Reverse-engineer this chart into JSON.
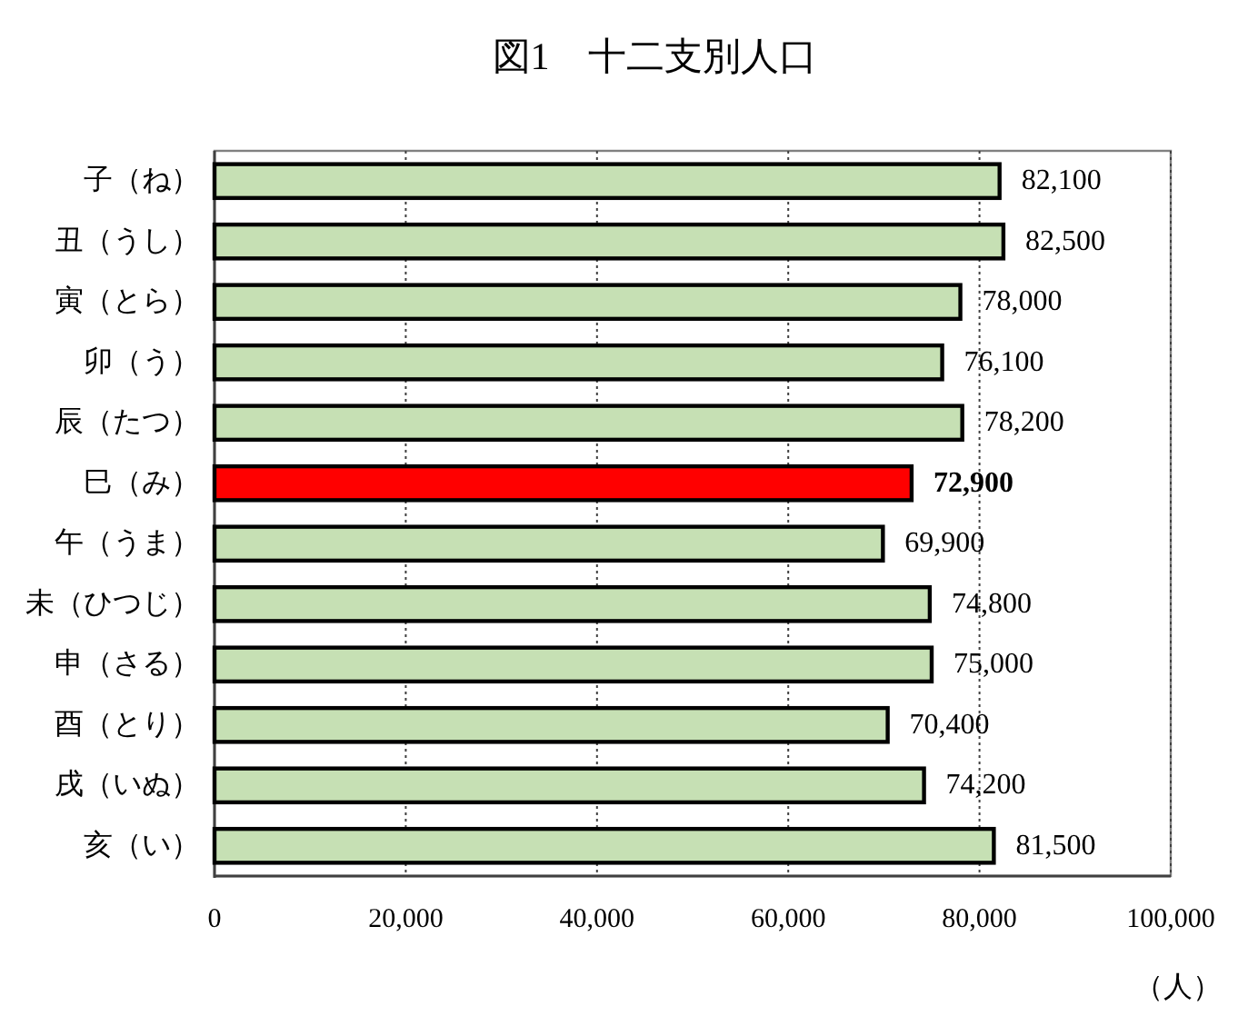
{
  "chart_data": {
    "type": "bar",
    "orientation": "horizontal",
    "title": "図1　十二支別人口",
    "xlabel": "（人）",
    "categories": [
      "子（ね）",
      "丑（うし）",
      "寅（とら）",
      "卯（う）",
      "辰（たつ）",
      "巳（み）",
      "午（うま）",
      "未（ひつじ）",
      "申（さる）",
      "酉（とり）",
      "戌（いぬ）",
      "亥（い）"
    ],
    "values": [
      82100,
      82500,
      78000,
      76100,
      78200,
      72900,
      69900,
      74800,
      75000,
      70400,
      74200,
      81500
    ],
    "value_labels": [
      "82,100",
      "82,500",
      "78,000",
      "76,100",
      "78,200",
      "72,900",
      "69,900",
      "74,800",
      "75,000",
      "70,400",
      "74,200",
      "81,500"
    ],
    "colors": [
      "#c6e0b4",
      "#c6e0b4",
      "#c6e0b4",
      "#c6e0b4",
      "#c6e0b4",
      "#ff0000",
      "#c6e0b4",
      "#c6e0b4",
      "#c6e0b4",
      "#c6e0b4",
      "#c6e0b4",
      "#c6e0b4"
    ],
    "xlim": [
      0,
      100000
    ],
    "xticks": [
      0,
      {
        "value": 20000,
        "label": "20,000"
      },
      {
        "value": 40000,
        "label": "40,000"
      },
      {
        "value": 60000,
        "label": "60,000"
      },
      {
        "value": 80000,
        "label": "80,000"
      },
      {
        "value": 100000,
        "label": "100,000"
      }
    ],
    "grid": "x"
  }
}
